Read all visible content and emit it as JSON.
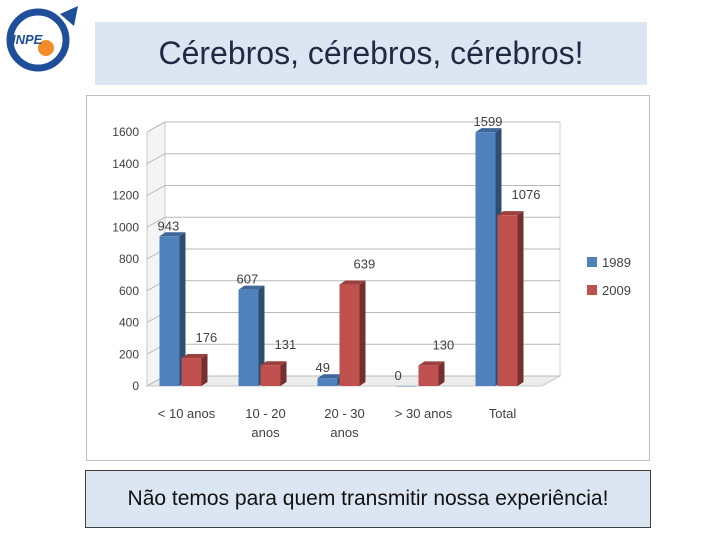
{
  "header": {
    "logo_text": "INPE",
    "title": "Cérebros, cérebros, cérebros!"
  },
  "caption": "Não temos para quem transmitir nossa experiência!",
  "colors": {
    "series_1989": "#4f81bd",
    "series_2009": "#c0504d",
    "title_bg": "#dce6f2"
  },
  "chart_data": {
    "type": "bar",
    "title": "",
    "xlabel": "",
    "ylabel": "",
    "categories": [
      [
        "< 10 anos"
      ],
      [
        "10 - 20",
        "anos"
      ],
      [
        "20 - 30",
        "anos"
      ],
      [
        "> 30 anos"
      ],
      [
        "Total"
      ]
    ],
    "series": [
      {
        "name": "1989",
        "values": [
          943,
          607,
          49,
          0,
          1599
        ]
      },
      {
        "name": "2009",
        "values": [
          176,
          131,
          639,
          130,
          1076
        ]
      }
    ],
    "ylim": [
      0,
      1600
    ],
    "yticks": [
      0,
      200,
      400,
      600,
      800,
      1000,
      1200,
      1400,
      1600
    ],
    "grid": true,
    "legend": "right",
    "bar_style": "3d"
  }
}
